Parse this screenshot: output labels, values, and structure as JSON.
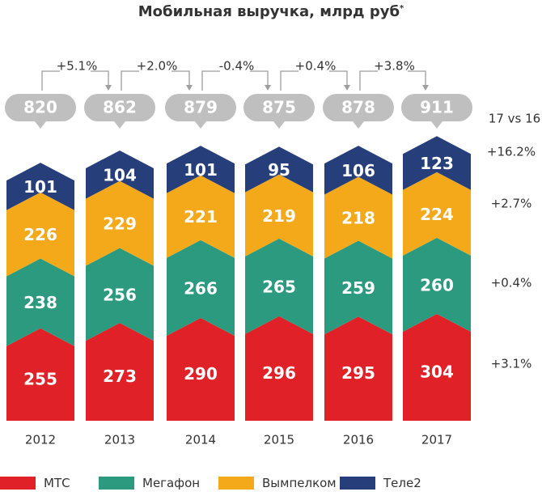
{
  "chart_data": {
    "type": "bar",
    "stacked": true,
    "title": "Мобильная выручка, млрд руб",
    "title_mark": "*",
    "categories": [
      "2012",
      "2013",
      "2014",
      "2015",
      "2016",
      "2017"
    ],
    "series": [
      {
        "name": "МТС",
        "color": "#e02127",
        "values": [
          255,
          273,
          290,
          296,
          295,
          304
        ],
        "change": "+3.1%"
      },
      {
        "name": "Мегафон",
        "color": "#2c9a7f",
        "values": [
          238,
          256,
          266,
          265,
          259,
          260
        ],
        "change": "+0.4%"
      },
      {
        "name": "Вымпелком",
        "color": "#f4a91a",
        "values": [
          226,
          229,
          221,
          219,
          218,
          224
        ],
        "change": "+2.7%"
      },
      {
        "name": "Теле2",
        "color": "#263e7a",
        "values": [
          101,
          104,
          101,
          95,
          106,
          123
        ],
        "change": "+16.2%"
      }
    ],
    "totals": [
      820,
      862,
      879,
      875,
      878,
      911
    ],
    "total_changes": [
      "+5.1%",
      "+2.0%",
      "-0.4%",
      "+0.4%",
      "+3.8%"
    ],
    "change_header": "17 vs 16",
    "grid": false,
    "legend_position": "bottom"
  }
}
